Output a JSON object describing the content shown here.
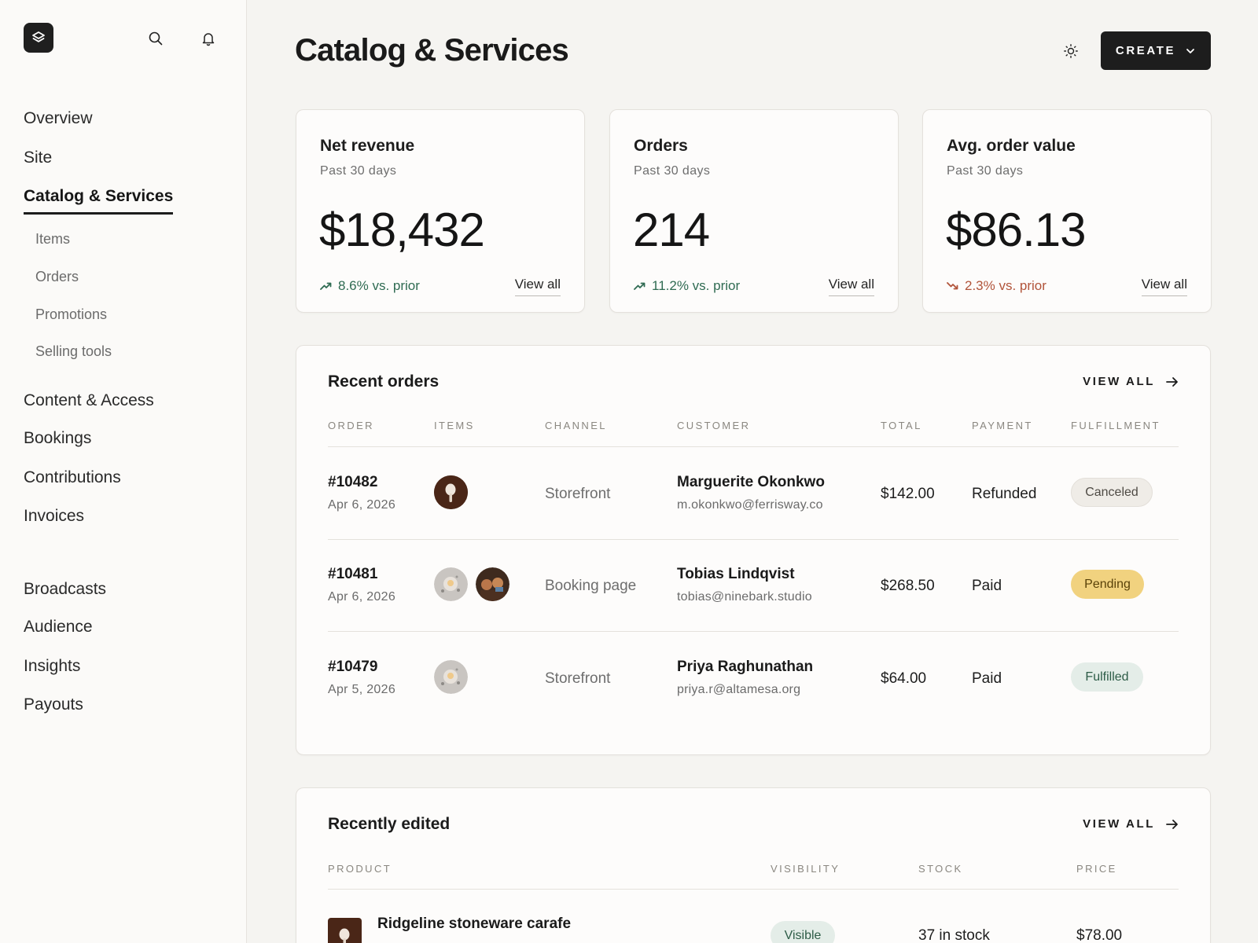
{
  "sidebar": {
    "nav_primary": [
      "Overview",
      "Site",
      "Catalog & Services"
    ],
    "nav_sub": [
      "Items",
      "Orders",
      "Promotions",
      "Selling tools"
    ],
    "nav_secondary": [
      "Content & Access",
      "Bookings",
      "Contributions",
      "Invoices"
    ],
    "nav_tertiary": [
      "Broadcasts",
      "Audience",
      "Insights",
      "Payouts"
    ],
    "active_item": "Catalog & Services"
  },
  "header": {
    "title": "Catalog & Services",
    "create_label": "CREATE"
  },
  "stats": [
    {
      "title": "Net revenue",
      "period": "Past 30 days",
      "value": "$18,432",
      "trend": "8.6% vs. prior",
      "direction": "up",
      "link": "View all"
    },
    {
      "title": "Orders",
      "period": "Past 30 days",
      "value": "214",
      "trend": "11.2% vs. prior",
      "direction": "up",
      "link": "View all"
    },
    {
      "title": "Avg. order value",
      "period": "Past 30 days",
      "value": "$86.13",
      "trend": "2.3% vs. prior",
      "direction": "down",
      "link": "View all"
    }
  ],
  "recent_orders": {
    "title": "Recent orders",
    "view_all": "VIEW ALL",
    "columns": [
      "ORDER",
      "ITEMS",
      "CHANNEL",
      "CUSTOMER",
      "TOTAL",
      "PAYMENT",
      "FULFILLMENT"
    ],
    "rows": [
      {
        "order": "#10482",
        "date": "Apr 6, 2026",
        "channel": "Storefront",
        "customer": "Marguerite Okonkwo",
        "email": "m.okonkwo@ferrisway.co",
        "total": "$142.00",
        "payment": "Refunded",
        "fulfillment": "Canceled"
      },
      {
        "order": "#10481",
        "date": "Apr 6, 2026",
        "channel": "Booking page",
        "customer": "Tobias Lindqvist",
        "email": "tobias@ninebark.studio",
        "total": "$268.50",
        "payment": "Paid",
        "fulfillment": "Pending"
      },
      {
        "order": "#10479",
        "date": "Apr 5, 2026",
        "channel": "Storefront",
        "customer": "Priya Raghunathan",
        "email": "priya.r@altamesa.org",
        "total": "$64.00",
        "payment": "Paid",
        "fulfillment": "Fulfilled"
      }
    ]
  },
  "recently_edited": {
    "title": "Recently edited",
    "view_all": "VIEW ALL",
    "columns": [
      "PRODUCT",
      "VISIBILITY",
      "STOCK",
      "PRICE"
    ],
    "rows": [
      {
        "product": "Ridgeline stoneware carafe",
        "visibility": "Visible",
        "stock": "37 in stock",
        "price": "$78.00"
      }
    ]
  },
  "colors": {
    "accent_dark": "#1d1d1d",
    "trend_up": "#2f6b52",
    "trend_down": "#b1543a",
    "pending": "#f1d27f",
    "fulfilled": "#e4ede8"
  }
}
